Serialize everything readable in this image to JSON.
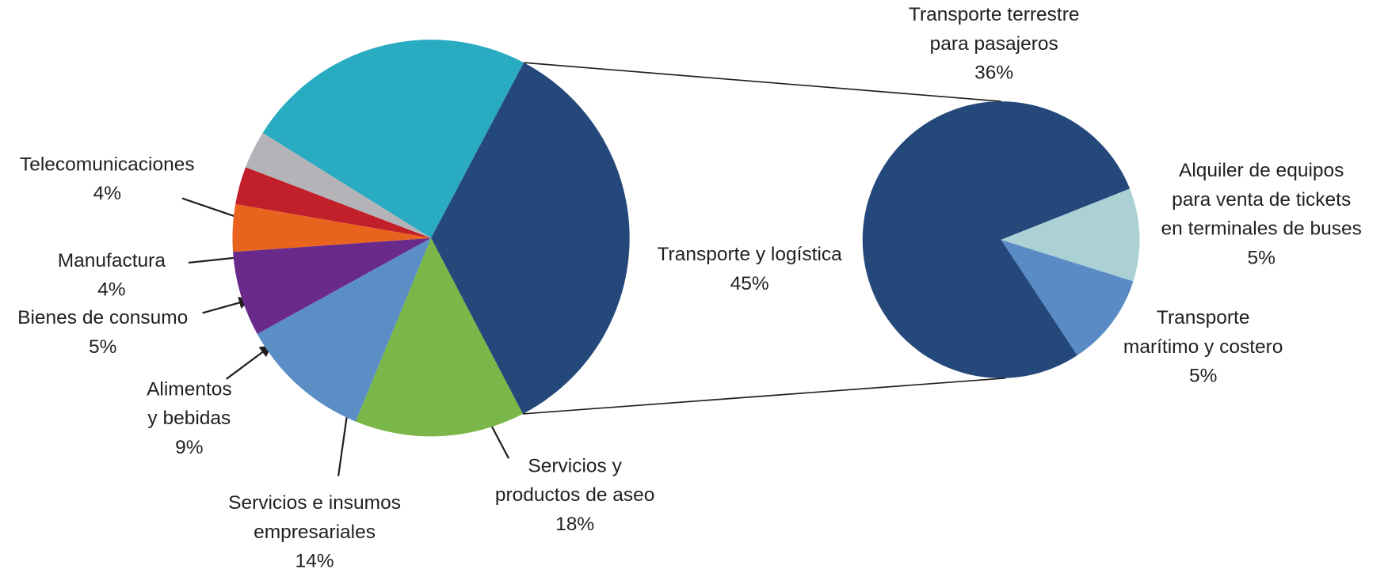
{
  "chart_data": [
    {
      "type": "pie",
      "categories": [
        null,
        "Transporte y logística",
        "Servicios y\nproductos de aseo",
        "Servicios e insumos\nempresariales",
        "Alimentos\ny bebidas",
        "Bienes de consumo",
        "Manufactura",
        "Telecomunicaciones"
      ],
      "values": [
        31,
        45,
        18,
        14,
        9,
        5,
        4,
        4
      ],
      "value_labels": [
        null,
        "45%",
        "18%",
        "14%",
        "9%",
        "5%",
        "4%",
        "4%"
      ],
      "colors": [
        "#29abc2",
        "#24487a",
        "#7ab648",
        "#5b8ec4",
        "#6a2a8c",
        "#e8641e",
        "#c1202b",
        "#b3b3b8"
      ]
    },
    {
      "type": "pie",
      "categories": [
        "Transporte terrestre\npara pasajeros",
        "Alquiler de equipos\npara venta de tickets\nen terminales de buses",
        "Transporte\nmarítimo y costero"
      ],
      "values": [
        36,
        5,
        5
      ],
      "value_labels": [
        "36%",
        "5%",
        "5%"
      ],
      "colors": [
        "#24487a",
        "#abd1d5",
        "#5a8bc5"
      ]
    }
  ]
}
